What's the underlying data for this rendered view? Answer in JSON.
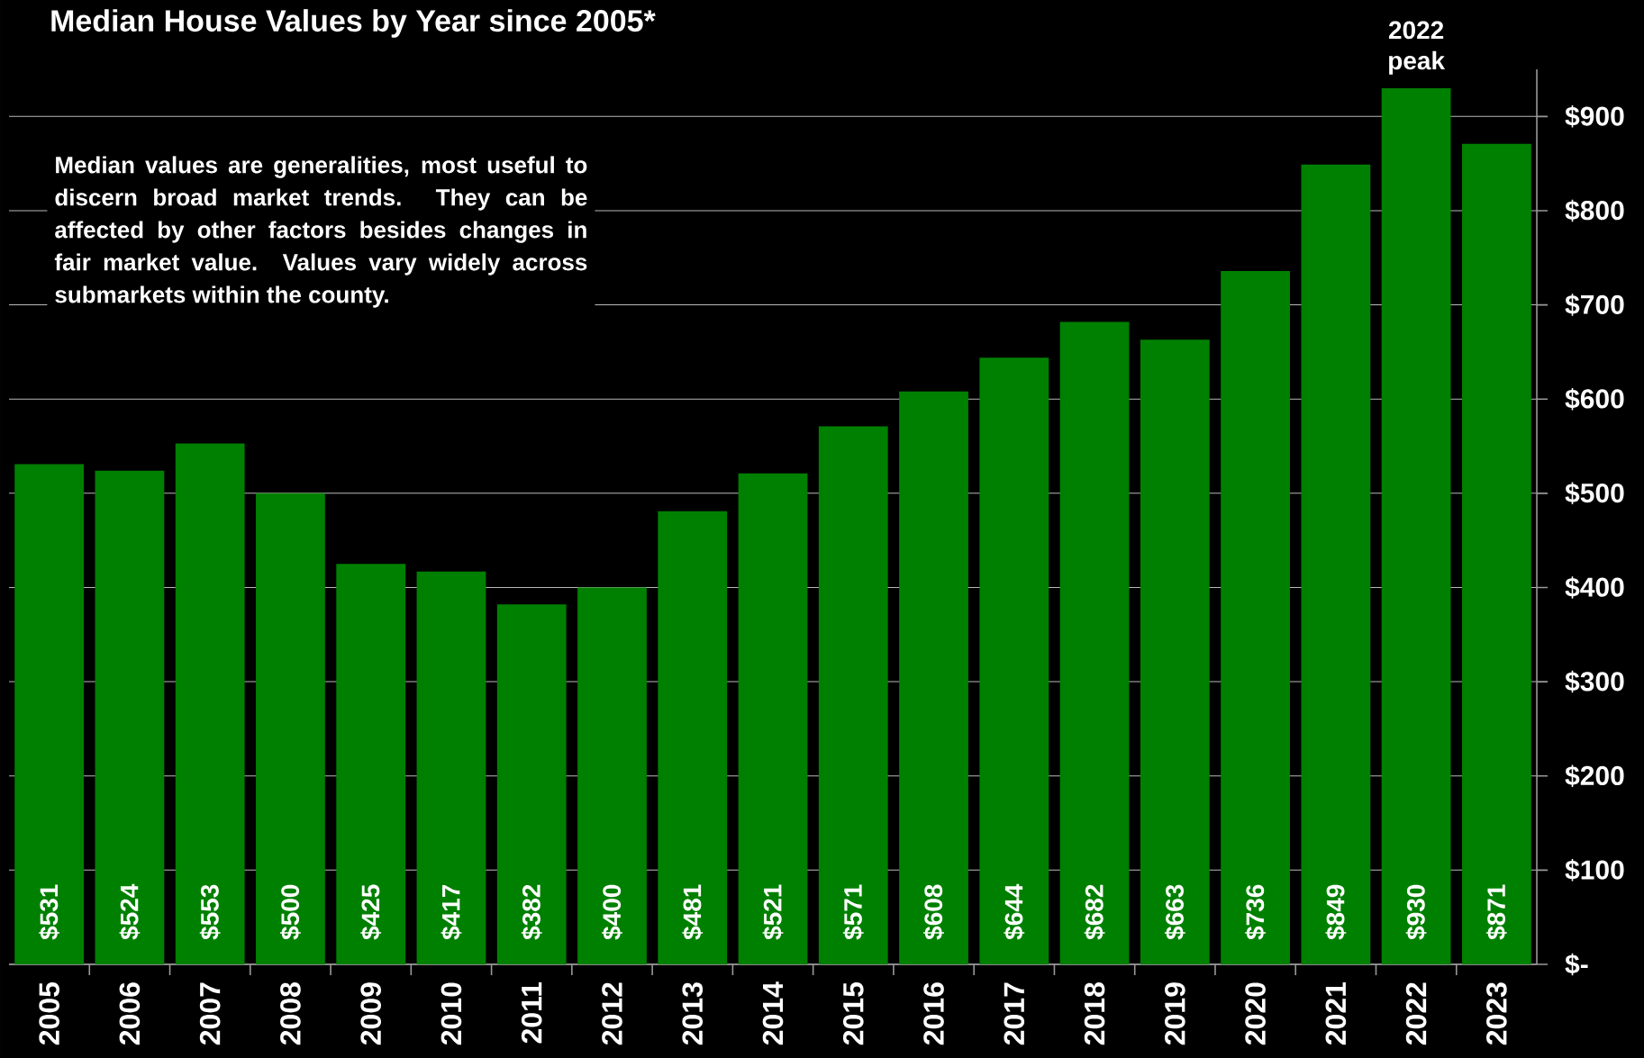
{
  "chart_data": {
    "type": "bar",
    "title": "Median House Values by Year since 2005*",
    "categories": [
      "2005",
      "2006",
      "2007",
      "2008",
      "2009",
      "2010",
      "2011",
      "2012",
      "2013",
      "2014",
      "2015",
      "2016",
      "2017",
      "2018",
      "2019",
      "2020",
      "2021",
      "2022",
      "2023"
    ],
    "values": [
      531,
      524,
      553,
      500,
      425,
      417,
      382,
      400,
      481,
      521,
      571,
      608,
      644,
      682,
      663,
      736,
      849,
      930,
      871
    ],
    "value_labels": [
      "$531",
      "$524",
      "$553",
      "$500",
      "$425",
      "$417",
      "$382",
      "$400",
      "$481",
      "$521",
      "$571",
      "$608",
      "$644",
      "$682",
      "$663",
      "$736",
      "$849",
      "$930",
      "$871"
    ],
    "color": "#008000",
    "ylim": [
      0,
      950
    ],
    "yticks": [
      {
        "value": 0,
        "label": "$-"
      },
      {
        "value": 100,
        "label": "$100"
      },
      {
        "value": 200,
        "label": "$200"
      },
      {
        "value": 300,
        "label": "$300"
      },
      {
        "value": 400,
        "label": "$400"
      },
      {
        "value": 500,
        "label": "$500"
      },
      {
        "value": 600,
        "label": "$600"
      },
      {
        "value": 700,
        "label": "$700"
      },
      {
        "value": 800,
        "label": "$800"
      },
      {
        "value": 900,
        "label": "$900"
      }
    ],
    "grid": "y",
    "annotations": [
      "Median values are generalities, most useful to discern broad market trends. They can be affected by other factors besides changes in fair market value. Values vary widely across submarkets within the county.",
      {
        "text": "2022 peak",
        "x": "2022",
        "y": 930
      }
    ]
  }
}
